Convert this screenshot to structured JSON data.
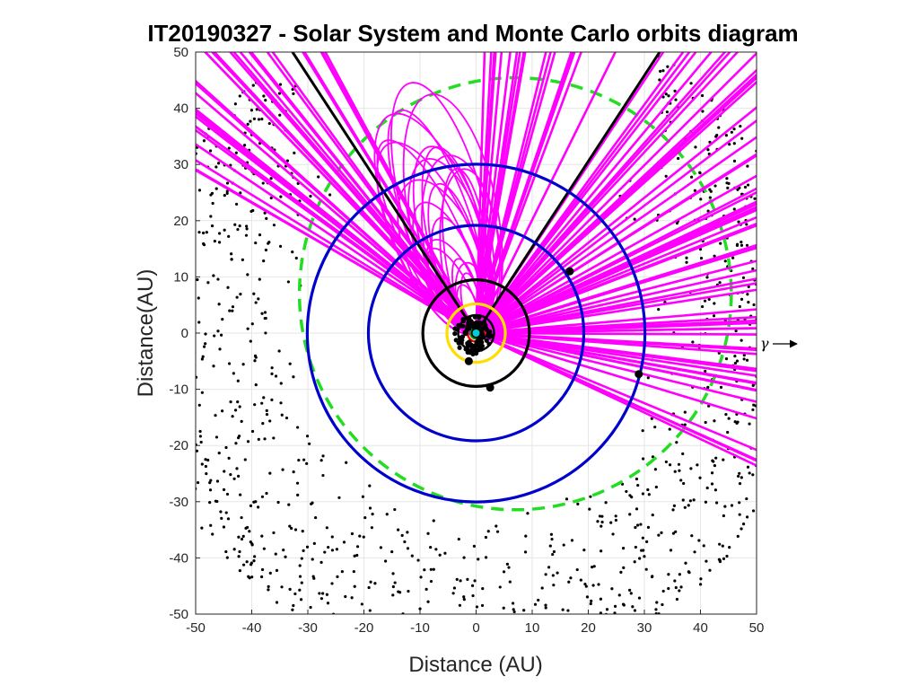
{
  "chart_data": {
    "type": "scatter",
    "title": "IT20190327 - Solar System and Monte Carlo orbits diagram",
    "xlabel": "Distance (AU)",
    "ylabel": "Distance(AU)",
    "xlim": [
      -50,
      50
    ],
    "ylim": [
      -50,
      50
    ],
    "xticks": [
      -50,
      -40,
      -30,
      -20,
      -10,
      0,
      10,
      20,
      30,
      40,
      50
    ],
    "yticks": [
      -50,
      -40,
      -30,
      -20,
      -10,
      0,
      10,
      20,
      30,
      40,
      50
    ],
    "grid": true,
    "annotation": "γ",
    "colors": {
      "planet_orbits_outer": "#0000cc",
      "planet_orbits_inner": "#000000",
      "asteroid_belt": "#ffdd00",
      "earth_orbit": "#00a000",
      "mars_orbit": "#ff0000",
      "monte_carlo": "#ff00ff",
      "kuiper_boundary": "#22dd22",
      "kuiper_objects": "#000000"
    },
    "orbits": [
      {
        "kind": "circle",
        "radius": 30.1,
        "color": "#0000cc"
      },
      {
        "kind": "circle",
        "radius": 19.2,
        "color": "#0000cc"
      },
      {
        "kind": "circle",
        "radius": 9.5,
        "color": "#000000"
      },
      {
        "kind": "circle",
        "radius": 5.2,
        "color": "#ffdd00"
      },
      {
        "kind": "circle",
        "radius": 3.2,
        "color": "#000000"
      },
      {
        "kind": "circle",
        "radius": 1.52,
        "color": "#ff0000"
      },
      {
        "kind": "circle",
        "radius": 1.0,
        "color": "#00a000"
      },
      {
        "kind": "circle",
        "radius": 0.72,
        "color": "#000000"
      },
      {
        "kind": "circle",
        "radius": 0.39,
        "color": "#000000"
      }
    ],
    "kuiper_boundary": {
      "center": [
        7,
        7
      ],
      "radius": 38.5
    },
    "planets": [
      {
        "x": 29.0,
        "y": -7.3
      },
      {
        "x": 16.7,
        "y": 11.0
      },
      {
        "x": 2.5,
        "y": -9.7
      },
      {
        "x": -1.3,
        "y": -5.0
      },
      {
        "x": 0.5,
        "y": 1.6
      }
    ],
    "reference_lines": [
      {
        "x0": 0,
        "y0": 0,
        "x1": -36,
        "y1": 55
      },
      {
        "x0": 0,
        "y0": 0,
        "x1": 36,
        "y1": 55
      }
    ],
    "monte_carlo": {
      "line_count": 110,
      "min_angle_deg": -28,
      "max_angle_deg": 150,
      "loop_count": 22,
      "scatter_count": 1600,
      "scatter_inner_radius": 31,
      "scatter_outer_radius": 60
    }
  }
}
